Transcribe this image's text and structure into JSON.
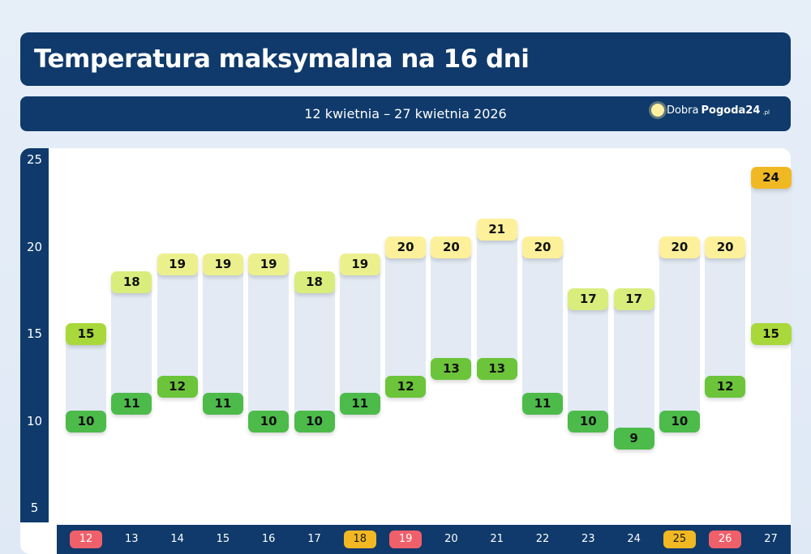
{
  "header": {
    "title": "Temperatura maksymalna na 16 dni",
    "date_range": "12 kwietnia – 27 kwietnia 2026",
    "logo": {
      "part1": "Dobra",
      "part2": "Pogoda24",
      "suffix": ".pl"
    }
  },
  "chart_data": {
    "type": "floating-bar",
    "title": "Temperatura maksymalna na 16 dni",
    "categories": [
      "12",
      "13",
      "14",
      "15",
      "16",
      "17",
      "18",
      "19",
      "20",
      "21",
      "22",
      "23",
      "24",
      "25",
      "26",
      "27"
    ],
    "series": [
      {
        "values_high": [
          15,
          18,
          19,
          19,
          19,
          18,
          19,
          20,
          20,
          21,
          20,
          17,
          17,
          20,
          20,
          24
        ]
      },
      {
        "values_low": [
          10,
          11,
          12,
          11,
          10,
          10,
          11,
          12,
          13,
          13,
          11,
          10,
          9,
          10,
          12,
          15
        ]
      }
    ],
    "ylim": [
      5,
      25
    ],
    "yticks": [
      "5",
      "10",
      "15",
      "20",
      "25"
    ],
    "day_highlight": {
      "12": "#f0606a",
      "18": "#f2b824",
      "19": "#f0606a",
      "25": "#f2b824",
      "26": "#f0606a"
    },
    "grid": false
  }
}
